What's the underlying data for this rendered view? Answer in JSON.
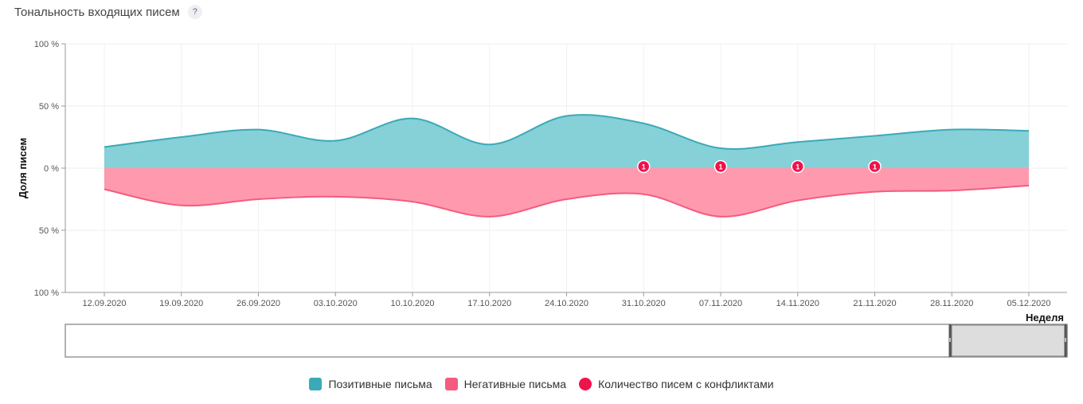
{
  "header": {
    "title": "Тональность входящих писем",
    "help": "?"
  },
  "colors": {
    "positive": "#3aaab8",
    "positive_fill": "#86d0d8",
    "negative": "#f45b7d",
    "negative_fill": "#ff99ad",
    "conflict": "#f0124b"
  },
  "legend": {
    "positive": "Позитивные письма",
    "negative": "Негативные письма",
    "conflicts": "Количество писем с конфликтами"
  },
  "chart_data": {
    "type": "area",
    "title": "",
    "xlabel": "Неделя",
    "ylabel": "Доля писем",
    "ylim": [
      -100,
      100
    ],
    "yticks": [
      {
        "value": 100,
        "label": "100 %"
      },
      {
        "value": 50,
        "label": "50 %"
      },
      {
        "value": 0,
        "label": "0 %"
      },
      {
        "value": -50,
        "label": "50 %"
      },
      {
        "value": -100,
        "label": "100 %"
      }
    ],
    "categories": [
      "12.09.2020",
      "19.09.2020",
      "26.09.2020",
      "03.10.2020",
      "10.10.2020",
      "17.10.2020",
      "24.10.2020",
      "31.10.2020",
      "07.11.2020",
      "14.11.2020",
      "21.11.2020",
      "28.11.2020",
      "05.12.2020"
    ],
    "series": [
      {
        "name": "Позитивные письма",
        "values": [
          17,
          25,
          31,
          22,
          40,
          19,
          42,
          36,
          16,
          21,
          26,
          31,
          30
        ]
      },
      {
        "name": "Негативные письма",
        "values": [
          17,
          30,
          25,
          23,
          27,
          39,
          25,
          21,
          39,
          26,
          19,
          18,
          14
        ]
      },
      {
        "name": "Количество писем с конфликтами",
        "values": [
          null,
          null,
          null,
          null,
          null,
          null,
          null,
          1,
          1,
          1,
          1,
          null,
          null
        ]
      }
    ],
    "grid": true,
    "legend_position": "bottom"
  }
}
